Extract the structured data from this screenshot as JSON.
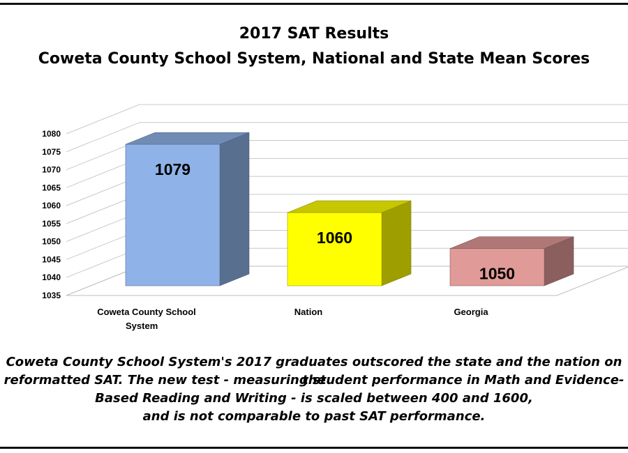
{
  "chart_data": {
    "type": "bar",
    "title": "2017 SAT Results",
    "subtitle": "Coweta County School System, National and State Mean Scores",
    "categories": [
      "Coweta County School System",
      "Nation",
      "Georgia"
    ],
    "category_lines": [
      [
        "Coweta County School",
        "System"
      ],
      [
        "Nation"
      ],
      [
        "Georgia"
      ]
    ],
    "values": [
      1079,
      1060,
      1050
    ],
    "value_labels": [
      "1079",
      "1060",
      "1050"
    ],
    "colors": [
      "#8fb3e8",
      "#ffff00",
      "#e09a98"
    ],
    "ylim": [
      1035,
      1080
    ],
    "yticks": [
      1035,
      1040,
      1045,
      1050,
      1055,
      1060,
      1065,
      1070,
      1075,
      1080
    ],
    "grid": true,
    "legend": "none",
    "xlabel": "",
    "ylabel": ""
  },
  "caption": {
    "line1": "Coweta County School System's 2017 graduates outscored the state and the nation on the",
    "line2": "reformatted SAT.  The new test - measuring student performance in Math and Evidence-",
    "line3": "Based Reading and Writing - is scaled between 400 and 1600,",
    "line4": "and is not comparable to past SAT performance."
  }
}
